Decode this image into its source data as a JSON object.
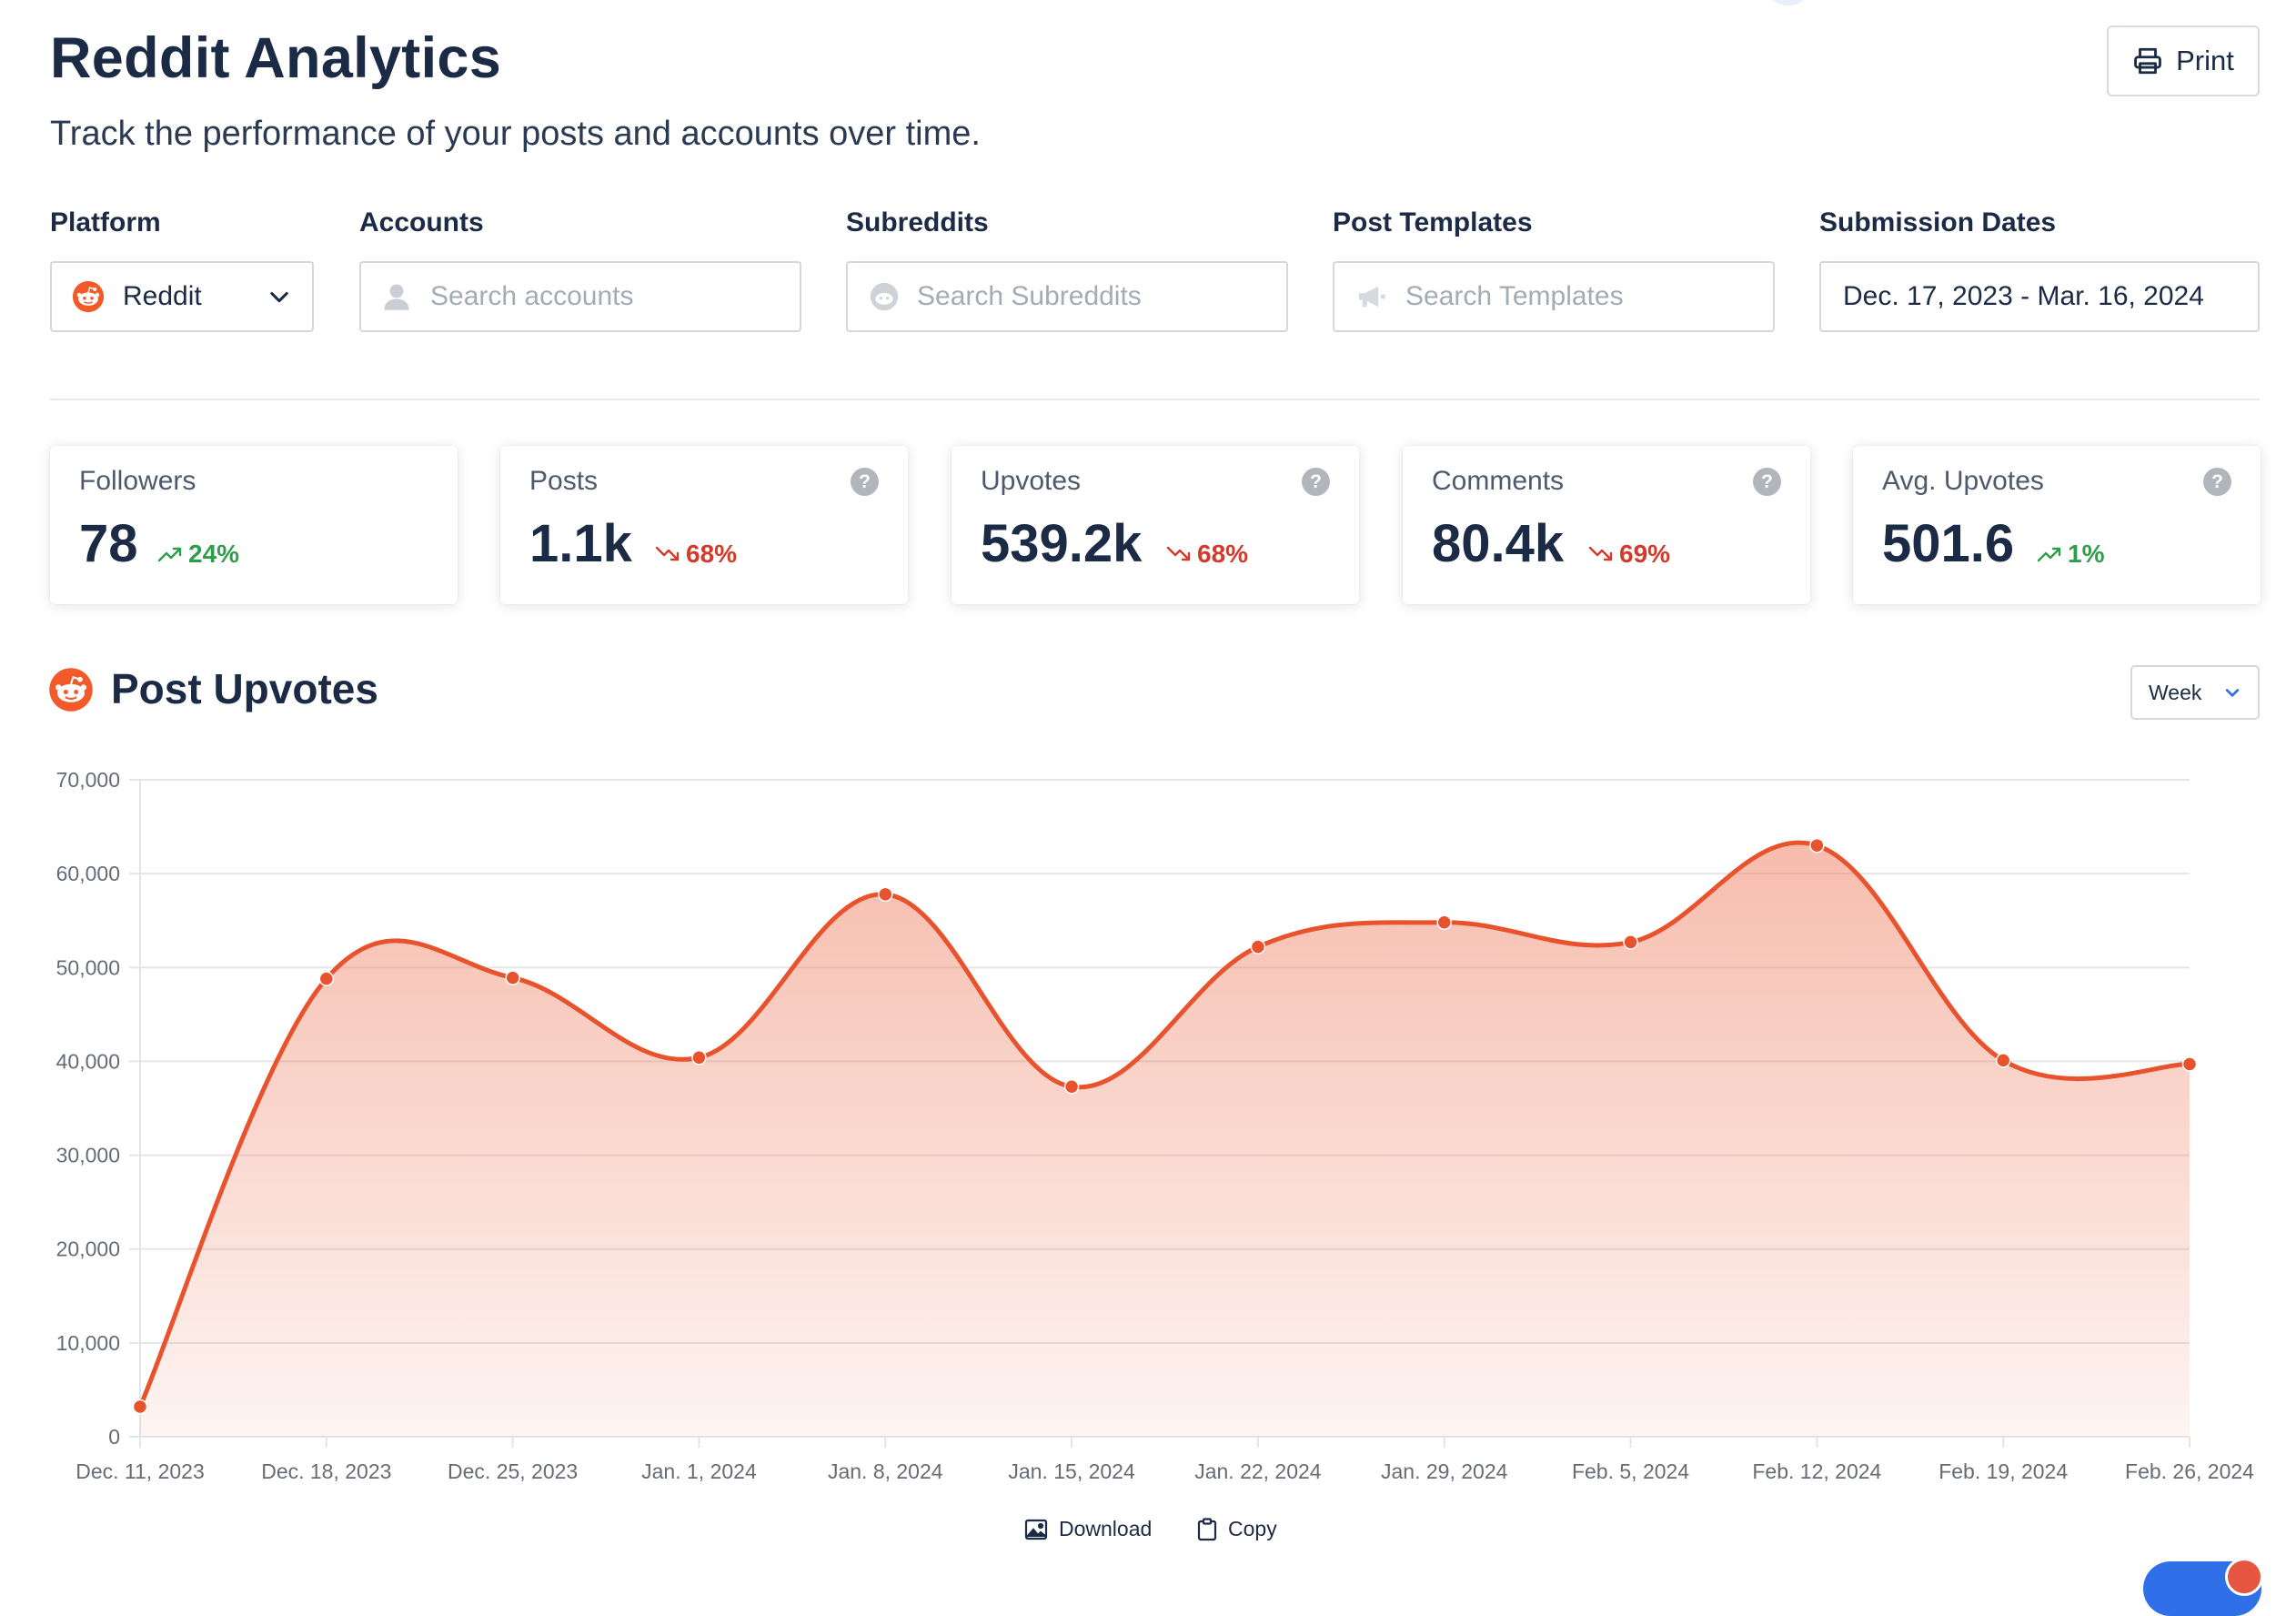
{
  "header": {
    "title": "Reddit Analytics",
    "subtitle": "Track the performance of your posts and accounts over time.",
    "print_label": "Print"
  },
  "filters": {
    "platform": {
      "label": "Platform",
      "value": "Reddit"
    },
    "accounts": {
      "label": "Accounts",
      "placeholder": "Search accounts"
    },
    "subreddits": {
      "label": "Subreddits",
      "placeholder": "Search Subreddits"
    },
    "templates": {
      "label": "Post Templates",
      "placeholder": "Search Templates"
    },
    "dates": {
      "label": "Submission Dates",
      "value": "Dec. 17, 2023 - Mar. 16, 2024"
    }
  },
  "stats": [
    {
      "label": "Followers",
      "value": "78",
      "change": "24%",
      "trend": "up",
      "has_help": false
    },
    {
      "label": "Posts",
      "value": "1.1k",
      "change": "68%",
      "trend": "down",
      "has_help": true
    },
    {
      "label": "Upvotes",
      "value": "539.2k",
      "change": "68%",
      "trend": "down",
      "has_help": true
    },
    {
      "label": "Comments",
      "value": "80.4k",
      "change": "69%",
      "trend": "down",
      "has_help": true
    },
    {
      "label": "Avg. Upvotes",
      "value": "501.6",
      "change": "1%",
      "trend": "up",
      "has_help": true
    }
  ],
  "help_glyph": "?",
  "section": {
    "title": "Post Upvotes",
    "interval": "Week"
  },
  "chart_actions": {
    "download": "Download",
    "copy": "Copy"
  },
  "colors": {
    "accent": "#e8532d",
    "brand": "#ff4500",
    "up": "#2e9e4a",
    "down": "#d33a2c",
    "text": "#1b2b45"
  },
  "chart_data": {
    "type": "area",
    "title": "Post Upvotes",
    "xlabel": "",
    "ylabel": "",
    "categories": [
      "Dec. 11, 2023",
      "Dec. 18, 2023",
      "Dec. 25, 2023",
      "Jan. 1, 2024",
      "Jan. 8, 2024",
      "Jan. 15, 2024",
      "Jan. 22, 2024",
      "Jan. 29, 2024",
      "Feb. 5, 2024",
      "Feb. 12, 2024",
      "Feb. 19, 2024",
      "Feb. 26, 2024"
    ],
    "series": [
      {
        "name": "Upvotes",
        "values": [
          3200,
          48800,
          48900,
          40400,
          57800,
          37300,
          52200,
          54800,
          52700,
          63000,
          40100,
          39700
        ]
      }
    ],
    "ylim": [
      0,
      70000
    ],
    "yticks": [
      0,
      10000,
      20000,
      30000,
      40000,
      50000,
      60000,
      70000
    ],
    "ytick_labels": [
      "0",
      "10,000",
      "20,000",
      "30,000",
      "40,000",
      "50,000",
      "60,000",
      "70,000"
    ],
    "grid": true,
    "legend": "none"
  }
}
